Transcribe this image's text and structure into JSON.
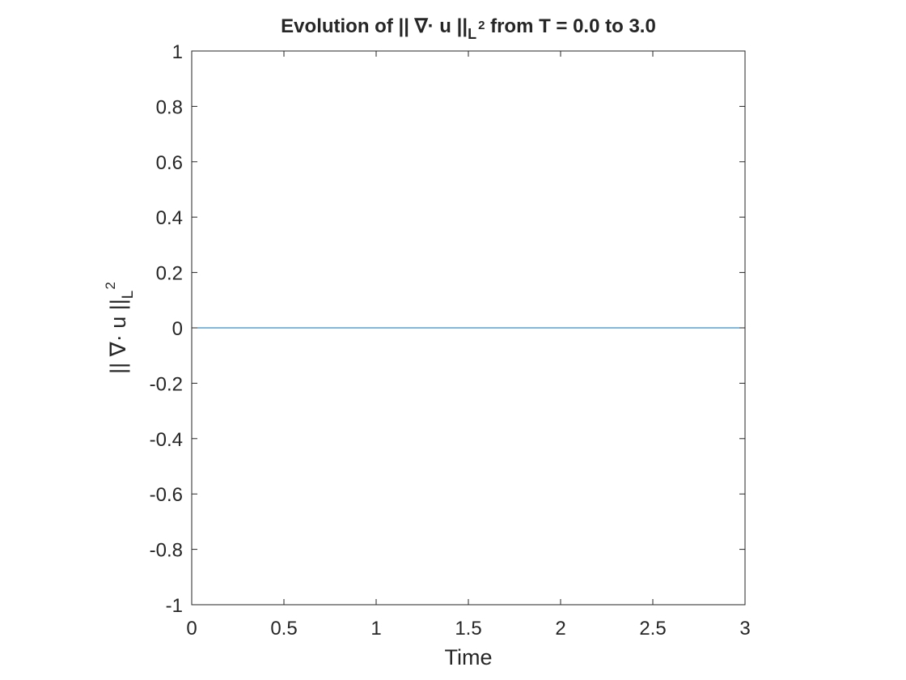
{
  "chart_data": {
    "type": "line",
    "title": {
      "before": "Evolution of || ∇· u ||",
      "sub": "L",
      "sup": "2",
      "after": " from T = 0.0 to 3.0"
    },
    "xlabel": "Time",
    "ylabel": {
      "main": "|| ∇· u ||",
      "sub": "L",
      "sup": "2"
    },
    "xlim": [
      0,
      3
    ],
    "ylim": [
      -1,
      1
    ],
    "xticks": [
      0,
      0.5,
      1,
      1.5,
      2,
      2.5,
      3
    ],
    "xtick_labels": [
      "0",
      "0.5",
      "1",
      "1.5",
      "2",
      "2.5",
      "3"
    ],
    "yticks": [
      1,
      0.8,
      0.6,
      0.4,
      0.2,
      0,
      -0.2,
      -0.4,
      -0.6,
      -0.8,
      -1
    ],
    "ytick_labels": [
      "1",
      "0.8",
      "0.6",
      "0.4",
      "0.2",
      "0",
      "-0.2",
      "-0.4",
      "-0.6",
      "-0.8",
      "-1"
    ],
    "grid": false,
    "box": true,
    "series": [
      {
        "color": "#0072BD",
        "x": [
          0,
          3
        ],
        "y": [
          0,
          0
        ]
      }
    ]
  }
}
